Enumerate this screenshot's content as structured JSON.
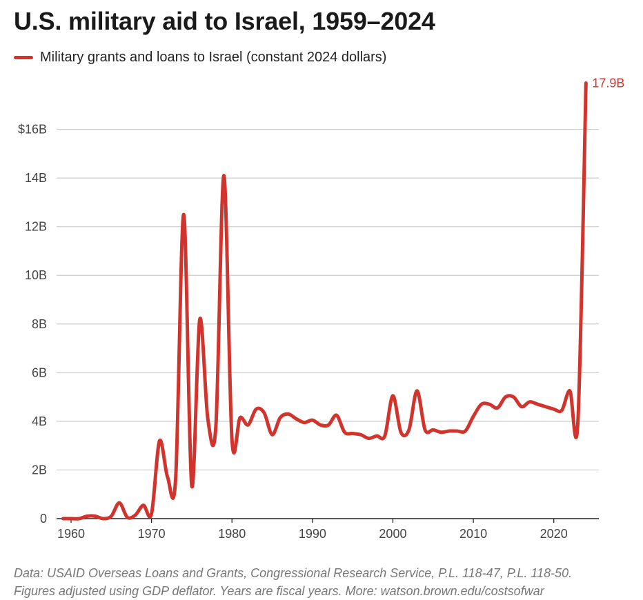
{
  "title": "U.S. military aid to Israel, 1959–2024",
  "colors": {
    "line": "#d0342c",
    "grid": "#cccccc",
    "axis": "#222222"
  },
  "chart_data": {
    "type": "line",
    "title": "U.S. military aid to Israel, 1959–2024",
    "xlabel": "",
    "ylabel": "",
    "xlim": [
      1958,
      2025
    ],
    "ylim": [
      0,
      18
    ],
    "grid": true,
    "legend_position": "top-left",
    "x_ticks": [
      1960,
      1970,
      1980,
      1990,
      2000,
      2010,
      2020
    ],
    "x_tick_labels": [
      "1960",
      "1970",
      "1980",
      "1990",
      "2000",
      "2010",
      "2020"
    ],
    "y_ticks": [
      0,
      2,
      4,
      6,
      8,
      10,
      12,
      14,
      16
    ],
    "y_tick_labels": [
      "0",
      "2B",
      "4B",
      "6B",
      "8B",
      "10B",
      "12B",
      "14B",
      "$16B"
    ],
    "series": [
      {
        "name": "Military grants and loans to Israel (constant 2024 dollars)",
        "unit": "billions of 2024 dollars",
        "x": [
          1959,
          1960,
          1961,
          1962,
          1963,
          1964,
          1965,
          1966,
          1967,
          1968,
          1969,
          1970,
          1971,
          1972,
          1973,
          1974,
          1975,
          1976,
          1977,
          1978,
          1979,
          1980,
          1981,
          1982,
          1983,
          1984,
          1985,
          1986,
          1987,
          1988,
          1989,
          1990,
          1991,
          1992,
          1993,
          1994,
          1995,
          1996,
          1997,
          1998,
          1999,
          2000,
          2001,
          2002,
          2003,
          2004,
          2005,
          2006,
          2007,
          2008,
          2009,
          2010,
          2011,
          2012,
          2013,
          2014,
          2015,
          2016,
          2017,
          2018,
          2019,
          2020,
          2021,
          2022,
          2023,
          2024
        ],
        "values": [
          0,
          0,
          0,
          0.1,
          0.1,
          0,
          0.1,
          0.65,
          0.05,
          0.15,
          0.55,
          0.2,
          3.2,
          1.7,
          1.65,
          12.5,
          1.35,
          8.2,
          4.1,
          3.8,
          14.1,
          3.25,
          4.15,
          3.85,
          4.5,
          4.35,
          3.45,
          4.15,
          4.3,
          4.1,
          3.95,
          4.05,
          3.85,
          3.85,
          4.25,
          3.55,
          3.5,
          3.45,
          3.3,
          3.4,
          3.4,
          5.05,
          3.55,
          3.65,
          5.25,
          3.65,
          3.65,
          3.55,
          3.6,
          3.6,
          3.6,
          4.2,
          4.7,
          4.7,
          4.55,
          5.0,
          5.0,
          4.6,
          4.8,
          4.7,
          4.6,
          4.5,
          4.45,
          5.25,
          4.0,
          17.9
        ]
      }
    ],
    "annotations": [
      {
        "text": "17.9B",
        "x": 2024,
        "y": 17.9
      }
    ]
  },
  "note": {
    "line1": "Data: USAID Overseas Loans and Grants, Congressional Research Service, P.L. 118-47, P.L. 118-50.",
    "line2": "Figures adjusted using GDP deflator. Years are fiscal years. More: watson.brown.edu/costsofwar"
  }
}
